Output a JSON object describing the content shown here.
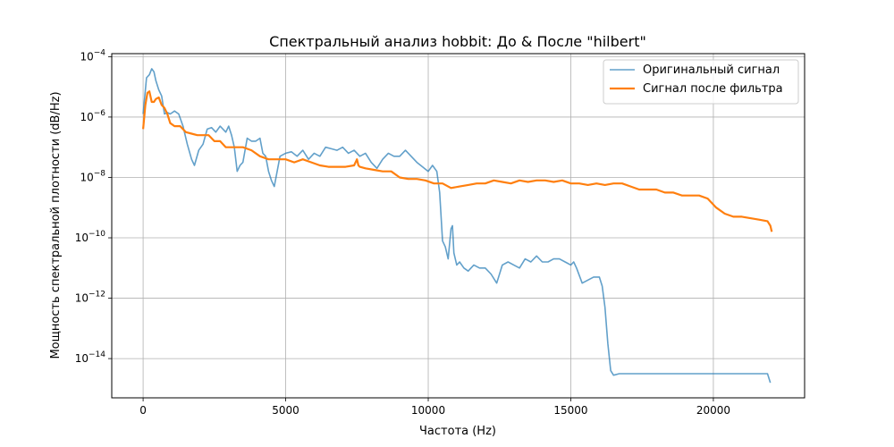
{
  "chart_data": {
    "type": "line",
    "title": "Спектральный анализ hobbit: До & После \"hilbert\"",
    "xlabel": "Частота (Hz)",
    "ylabel": "Мощность спектральной плотности (dB/Hz)",
    "xlim": [
      -1100,
      23200
    ],
    "ylim_log10": [
      -15.3,
      -3.9
    ],
    "y_scale": "log",
    "grid": true,
    "legend_position": "top-right",
    "x_ticks": [
      {
        "value": 0,
        "label": "0"
      },
      {
        "value": 5000,
        "label": "5000"
      },
      {
        "value": 10000,
        "label": "10000"
      },
      {
        "value": 15000,
        "label": "15000"
      },
      {
        "value": 20000,
        "label": "20000"
      }
    ],
    "y_ticks": [
      {
        "exp": -4,
        "base": "10",
        "sup": "−4"
      },
      {
        "exp": -6,
        "base": "10",
        "sup": "−6"
      },
      {
        "exp": -8,
        "base": "10",
        "sup": "−8"
      },
      {
        "exp": -10,
        "base": "10",
        "sup": "−10"
      },
      {
        "exp": -12,
        "base": "10",
        "sup": "−12"
      },
      {
        "exp": -14,
        "base": "10",
        "sup": "−14"
      }
    ],
    "series": [
      {
        "name": "Оригинальный сигнал",
        "color": "#1f77b4",
        "opacity": 0.7,
        "width": 1.6,
        "x": [
          0,
          120,
          220,
          300,
          380,
          450,
          550,
          650,
          750,
          850,
          950,
          1100,
          1250,
          1400,
          1550,
          1700,
          1800,
          1950,
          2100,
          2250,
          2400,
          2550,
          2700,
          2800,
          2900,
          3000,
          3100,
          3200,
          3300,
          3400,
          3500,
          3650,
          3800,
          3950,
          4100,
          4200,
          4300,
          4400,
          4500,
          4600,
          4800,
          5000,
          5200,
          5400,
          5600,
          5800,
          6000,
          6200,
          6400,
          6600,
          6800,
          7000,
          7200,
          7400,
          7600,
          7800,
          8000,
          8200,
          8400,
          8600,
          8800,
          9000,
          9200,
          9400,
          9600,
          9800,
          10000,
          10150,
          10300,
          10400,
          10500,
          10600,
          10700,
          10800,
          10850,
          10900,
          11000,
          11100,
          11250,
          11400,
          11600,
          11800,
          12000,
          12200,
          12400,
          12600,
          12800,
          13000,
          13200,
          13400,
          13600,
          13800,
          14000,
          14200,
          14400,
          14600,
          14800,
          15000,
          15100,
          15200,
          15400,
          15600,
          15800,
          16000,
          16100,
          16200,
          16300,
          16400,
          16500,
          16700,
          17000,
          17500,
          18000,
          18500,
          19000,
          19500,
          20000,
          20500,
          21000,
          21500,
          21900,
          22000,
          22050
        ],
        "log10_y": [
          -5.9,
          -4.7,
          -4.6,
          -4.4,
          -4.5,
          -4.8,
          -5.1,
          -5.3,
          -5.9,
          -5.85,
          -5.9,
          -5.8,
          -5.9,
          -6.3,
          -6.9,
          -7.4,
          -7.6,
          -7.1,
          -6.9,
          -6.4,
          -6.35,
          -6.5,
          -6.3,
          -6.4,
          -6.5,
          -6.3,
          -6.6,
          -7.0,
          -7.8,
          -7.6,
          -7.5,
          -6.7,
          -6.8,
          -6.8,
          -6.7,
          -7.2,
          -7.3,
          -7.8,
          -8.1,
          -8.3,
          -7.3,
          -7.2,
          -7.15,
          -7.3,
          -7.1,
          -7.4,
          -7.2,
          -7.3,
          -7.0,
          -7.05,
          -7.1,
          -7.0,
          -7.2,
          -7.1,
          -7.3,
          -7.2,
          -7.5,
          -7.7,
          -7.4,
          -7.2,
          -7.3,
          -7.3,
          -7.1,
          -7.3,
          -7.5,
          -7.65,
          -7.8,
          -7.6,
          -7.8,
          -8.5,
          -10.1,
          -10.3,
          -10.7,
          -9.7,
          -9.6,
          -10.5,
          -10.9,
          -10.8,
          -11.0,
          -11.1,
          -10.9,
          -11.0,
          -11.0,
          -11.2,
          -11.5,
          -10.9,
          -10.8,
          -10.9,
          -11.0,
          -10.7,
          -10.8,
          -10.6,
          -10.8,
          -10.8,
          -10.7,
          -10.7,
          -10.8,
          -10.9,
          -10.8,
          -11.0,
          -11.5,
          -11.4,
          -11.3,
          -11.3,
          -11.6,
          -12.3,
          -13.5,
          -14.4,
          -14.55,
          -14.5,
          -14.5,
          -14.5,
          -14.5,
          -14.5,
          -14.5,
          -14.5,
          -14.5,
          -14.5,
          -14.5,
          -14.5,
          -14.5,
          -14.8
        ]
      },
      {
        "name": "Сигнал после фильтра",
        "color": "#ff7f0e",
        "opacity": 1.0,
        "width": 2.2,
        "x": [
          0,
          80,
          150,
          220,
          300,
          380,
          450,
          550,
          650,
          750,
          850,
          950,
          1100,
          1300,
          1500,
          1700,
          1900,
          2100,
          2300,
          2500,
          2700,
          2900,
          3200,
          3500,
          3800,
          4100,
          4400,
          4700,
          5000,
          5300,
          5600,
          5900,
          6200,
          6500,
          6800,
          7100,
          7400,
          7500,
          7550,
          7600,
          7800,
          8100,
          8400,
          8700,
          9000,
          9300,
          9600,
          9900,
          10200,
          10500,
          10800,
          11100,
          11400,
          11700,
          12000,
          12300,
          12600,
          12900,
          13200,
          13500,
          13800,
          14100,
          14400,
          14700,
          15000,
          15300,
          15600,
          15900,
          16200,
          16500,
          16800,
          17100,
          17400,
          17700,
          18000,
          18300,
          18600,
          18900,
          19200,
          19500,
          19800,
          20100,
          20400,
          20700,
          21000,
          21300,
          21600,
          21900,
          22000,
          22050
        ],
        "log10_y": [
          -6.4,
          -5.6,
          -5.2,
          -5.15,
          -5.5,
          -5.5,
          -5.4,
          -5.35,
          -5.6,
          -5.7,
          -5.9,
          -6.2,
          -6.3,
          -6.3,
          -6.5,
          -6.55,
          -6.6,
          -6.6,
          -6.6,
          -6.8,
          -6.8,
          -7.0,
          -7.0,
          -7.0,
          -7.1,
          -7.3,
          -7.4,
          -7.4,
          -7.4,
          -7.5,
          -7.4,
          -7.5,
          -7.6,
          -7.65,
          -7.65,
          -7.65,
          -7.6,
          -7.4,
          -7.6,
          -7.65,
          -7.7,
          -7.75,
          -7.8,
          -7.8,
          -8.0,
          -8.05,
          -8.05,
          -8.1,
          -8.2,
          -8.2,
          -8.35,
          -8.3,
          -8.25,
          -8.2,
          -8.2,
          -8.1,
          -8.15,
          -8.2,
          -8.1,
          -8.15,
          -8.1,
          -8.1,
          -8.15,
          -8.1,
          -8.2,
          -8.2,
          -8.25,
          -8.2,
          -8.25,
          -8.2,
          -8.2,
          -8.3,
          -8.4,
          -8.4,
          -8.4,
          -8.5,
          -8.5,
          -8.6,
          -8.6,
          -8.6,
          -8.7,
          -9.0,
          -9.2,
          -9.3,
          -9.3,
          -9.35,
          -9.4,
          -9.45,
          -9.6,
          -9.8
        ]
      }
    ]
  }
}
